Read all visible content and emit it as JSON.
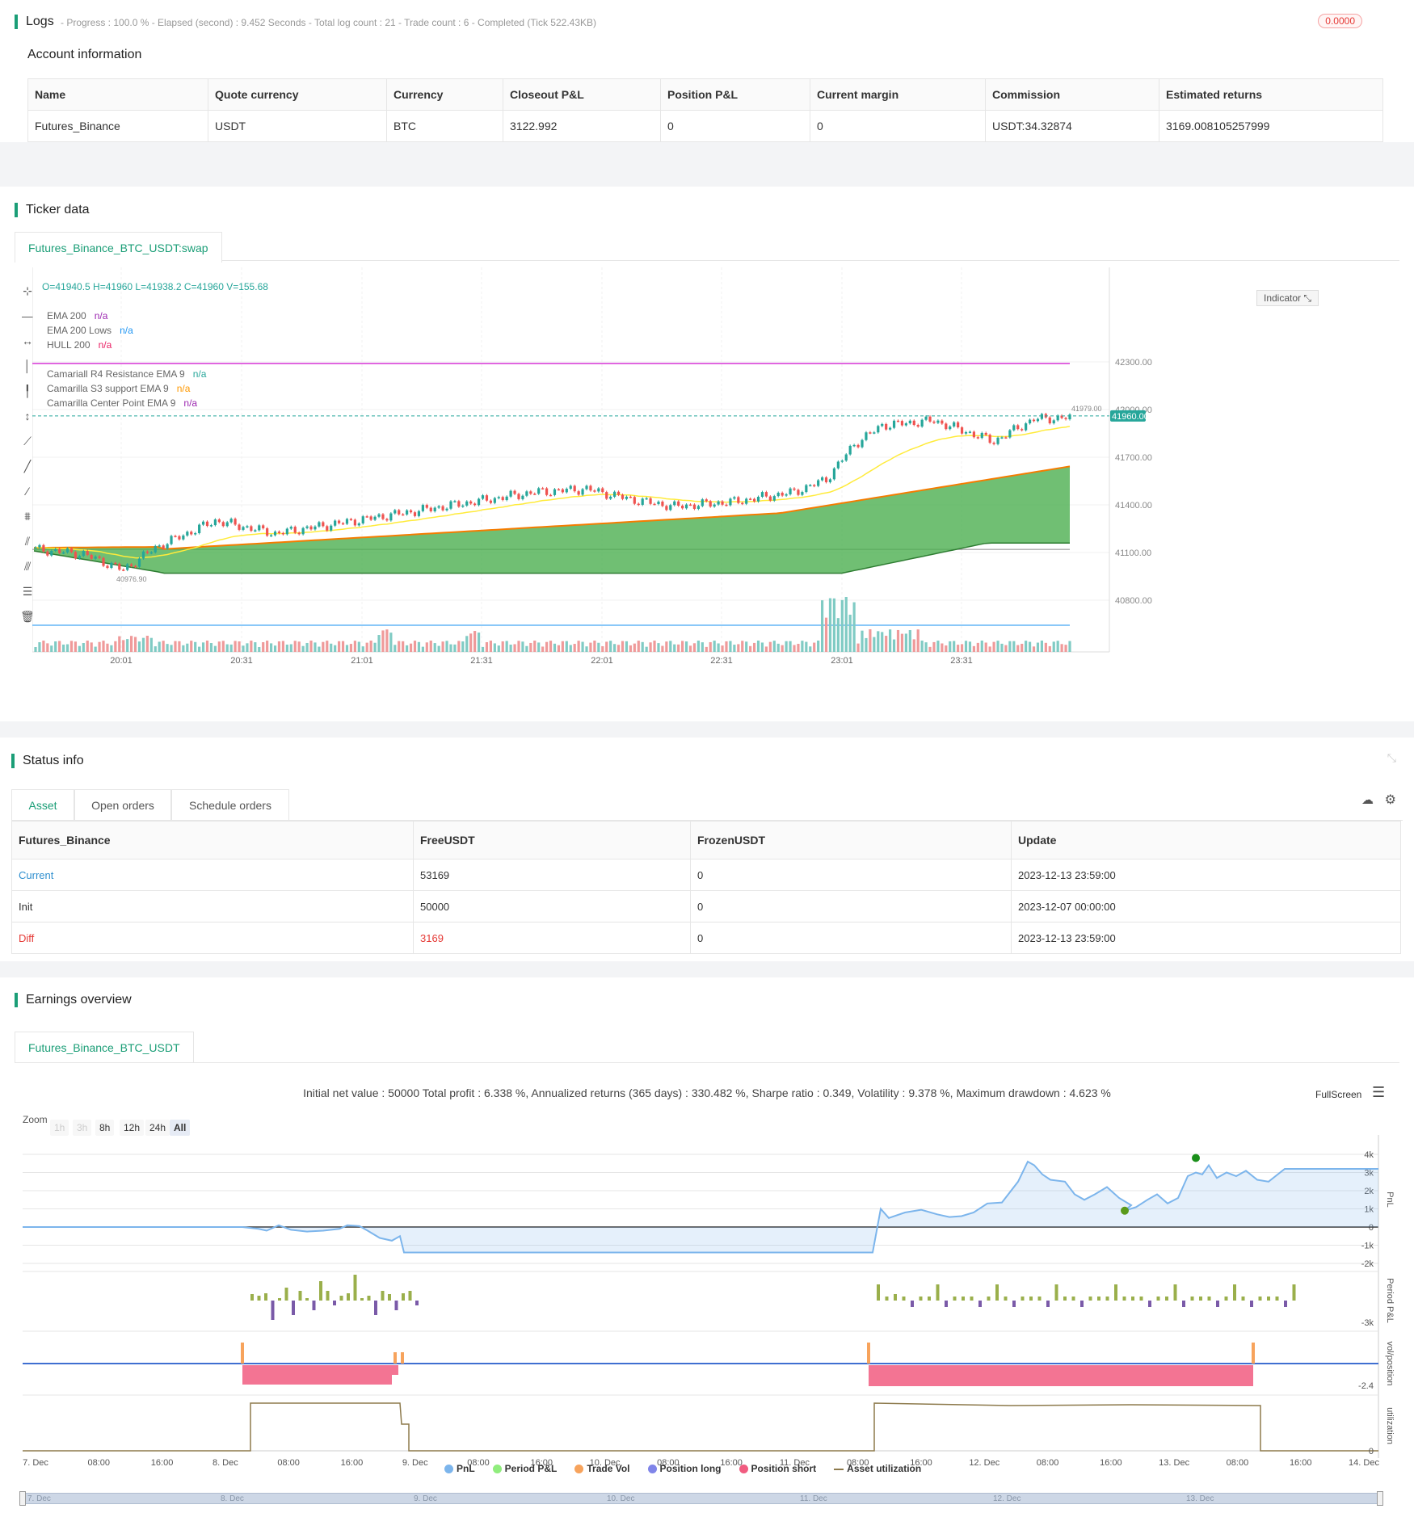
{
  "logs": {
    "title": "Logs",
    "summary": "- Progress : 100.0 % - Elapsed (second) : 9.452  Seconds - Total log count : 21 - Trade count : 6 - Completed (Tick 522.43KB)",
    "badge": "0.0000",
    "account_title": "Account information",
    "account_headers": [
      "Name",
      "Quote currency",
      "Currency",
      "Closeout P&L",
      "Position P&L",
      "Current margin",
      "Commission",
      "Estimated returns"
    ],
    "account_row": [
      "Futures_Binance",
      "USDT",
      "BTC",
      "3122.992",
      "0",
      "0",
      "USDT:34.32874",
      "3169.008105257999"
    ]
  },
  "ticker": {
    "title": "Ticker data",
    "tab": "Futures_Binance_BTC_USDT:swap",
    "ohlc": "O=41940.5 H=41960 L=41938.2 C=41960 V=155.68",
    "legend": [
      {
        "label": "EMA 200",
        "value": "n/a",
        "color": "#9c27b0"
      },
      {
        "label": "EMA 200 Lows",
        "value": "n/a",
        "color": "#2196f3"
      },
      {
        "label": "HULL 200",
        "value": "n/a",
        "color": "#e91e63"
      },
      {
        "label": "Camariall R4 Resistance EMA 9",
        "value": "n/a",
        "color": "#26a69a"
      },
      {
        "label": "Camarilla S3 support EMA 9",
        "value": "n/a",
        "color": "#ff9800"
      },
      {
        "label": "Camarilla Center Point EMA 9",
        "value": "n/a",
        "color": "#9c27b0"
      }
    ],
    "indicator_btn": "Indicator",
    "y_ticks": [
      "42300.00",
      "42000.00",
      "41700.00",
      "41400.00",
      "41100.00",
      "40800.00"
    ],
    "x_ticks": [
      "20:01",
      "20:31",
      "21:01",
      "21:31",
      "22:01",
      "22:31",
      "23:01",
      "23:31"
    ],
    "last_price": "41960.00",
    "high_label": "41979.00",
    "low_label": "40976.90",
    "colors": {
      "up": "#26a69a",
      "down": "#ef5350",
      "accent": "#1b9e77"
    }
  },
  "status": {
    "title": "Status info",
    "tabs": [
      "Asset",
      "Open orders",
      "Schedule orders"
    ],
    "headers": [
      "Futures_Binance",
      "FreeUSDT",
      "FrozenUSDT",
      "Update"
    ],
    "rows": [
      [
        "Current",
        "53169",
        "0",
        "2023-12-13 23:59:00"
      ],
      [
        "Init",
        "50000",
        "0",
        "2023-12-07 00:00:00"
      ],
      [
        "Diff",
        "3169",
        "0",
        "2023-12-13 23:59:00"
      ]
    ]
  },
  "earnings": {
    "title": "Earnings overview",
    "tab": "Futures_Binance_BTC_USDT",
    "summary": "Initial net value : 50000  Total profit : 6.338 %, Annualized returns (365 days) : 330.482 %, Sharpe ratio : 0.349, Volatility : 9.378 %, Maximum drawdown : 4.623 %",
    "fullscreen": "FullScreen",
    "zoom_label": "Zoom",
    "zoom_options": [
      "1h",
      "3h",
      "8h",
      "12h",
      "24h",
      "All"
    ],
    "pnl_ticks": [
      "4k",
      "3k",
      "2k",
      "1k",
      "0",
      "-1k",
      "-2k"
    ],
    "period_tick": "-3k",
    "vol_tick": "-2.4",
    "util_tick": "0",
    "panel_labels": [
      "PnL",
      "Period P&L",
      "vol/position",
      "utilization"
    ],
    "x_ticks": [
      "7. Dec",
      "08:00",
      "16:00",
      "8. Dec",
      "08:00",
      "16:00",
      "9. Dec",
      "08:00",
      "16:00",
      "10. Dec",
      "08:00",
      "16:00",
      "11. Dec",
      "08:00",
      "16:00",
      "12. Dec",
      "08:00",
      "16:00",
      "13. Dec",
      "08:00",
      "16:00",
      "14. Dec"
    ],
    "legend": [
      {
        "label": "PnL",
        "color": "#7cb5ec"
      },
      {
        "label": "Period P&L",
        "color": "#90ed7d"
      },
      {
        "label": "Trade Vol",
        "color": "#f7a35c"
      },
      {
        "label": "Position long",
        "color": "#8085e9"
      },
      {
        "label": "Position short",
        "color": "#f15c80"
      },
      {
        "label": "Asset utilization",
        "color": "#8d7a4c"
      }
    ],
    "navigator_ticks": [
      "7. Dec",
      "8. Dec",
      "9. Dec",
      "10. Dec",
      "11. Dec",
      "12. Dec",
      "13. Dec"
    ]
  }
}
